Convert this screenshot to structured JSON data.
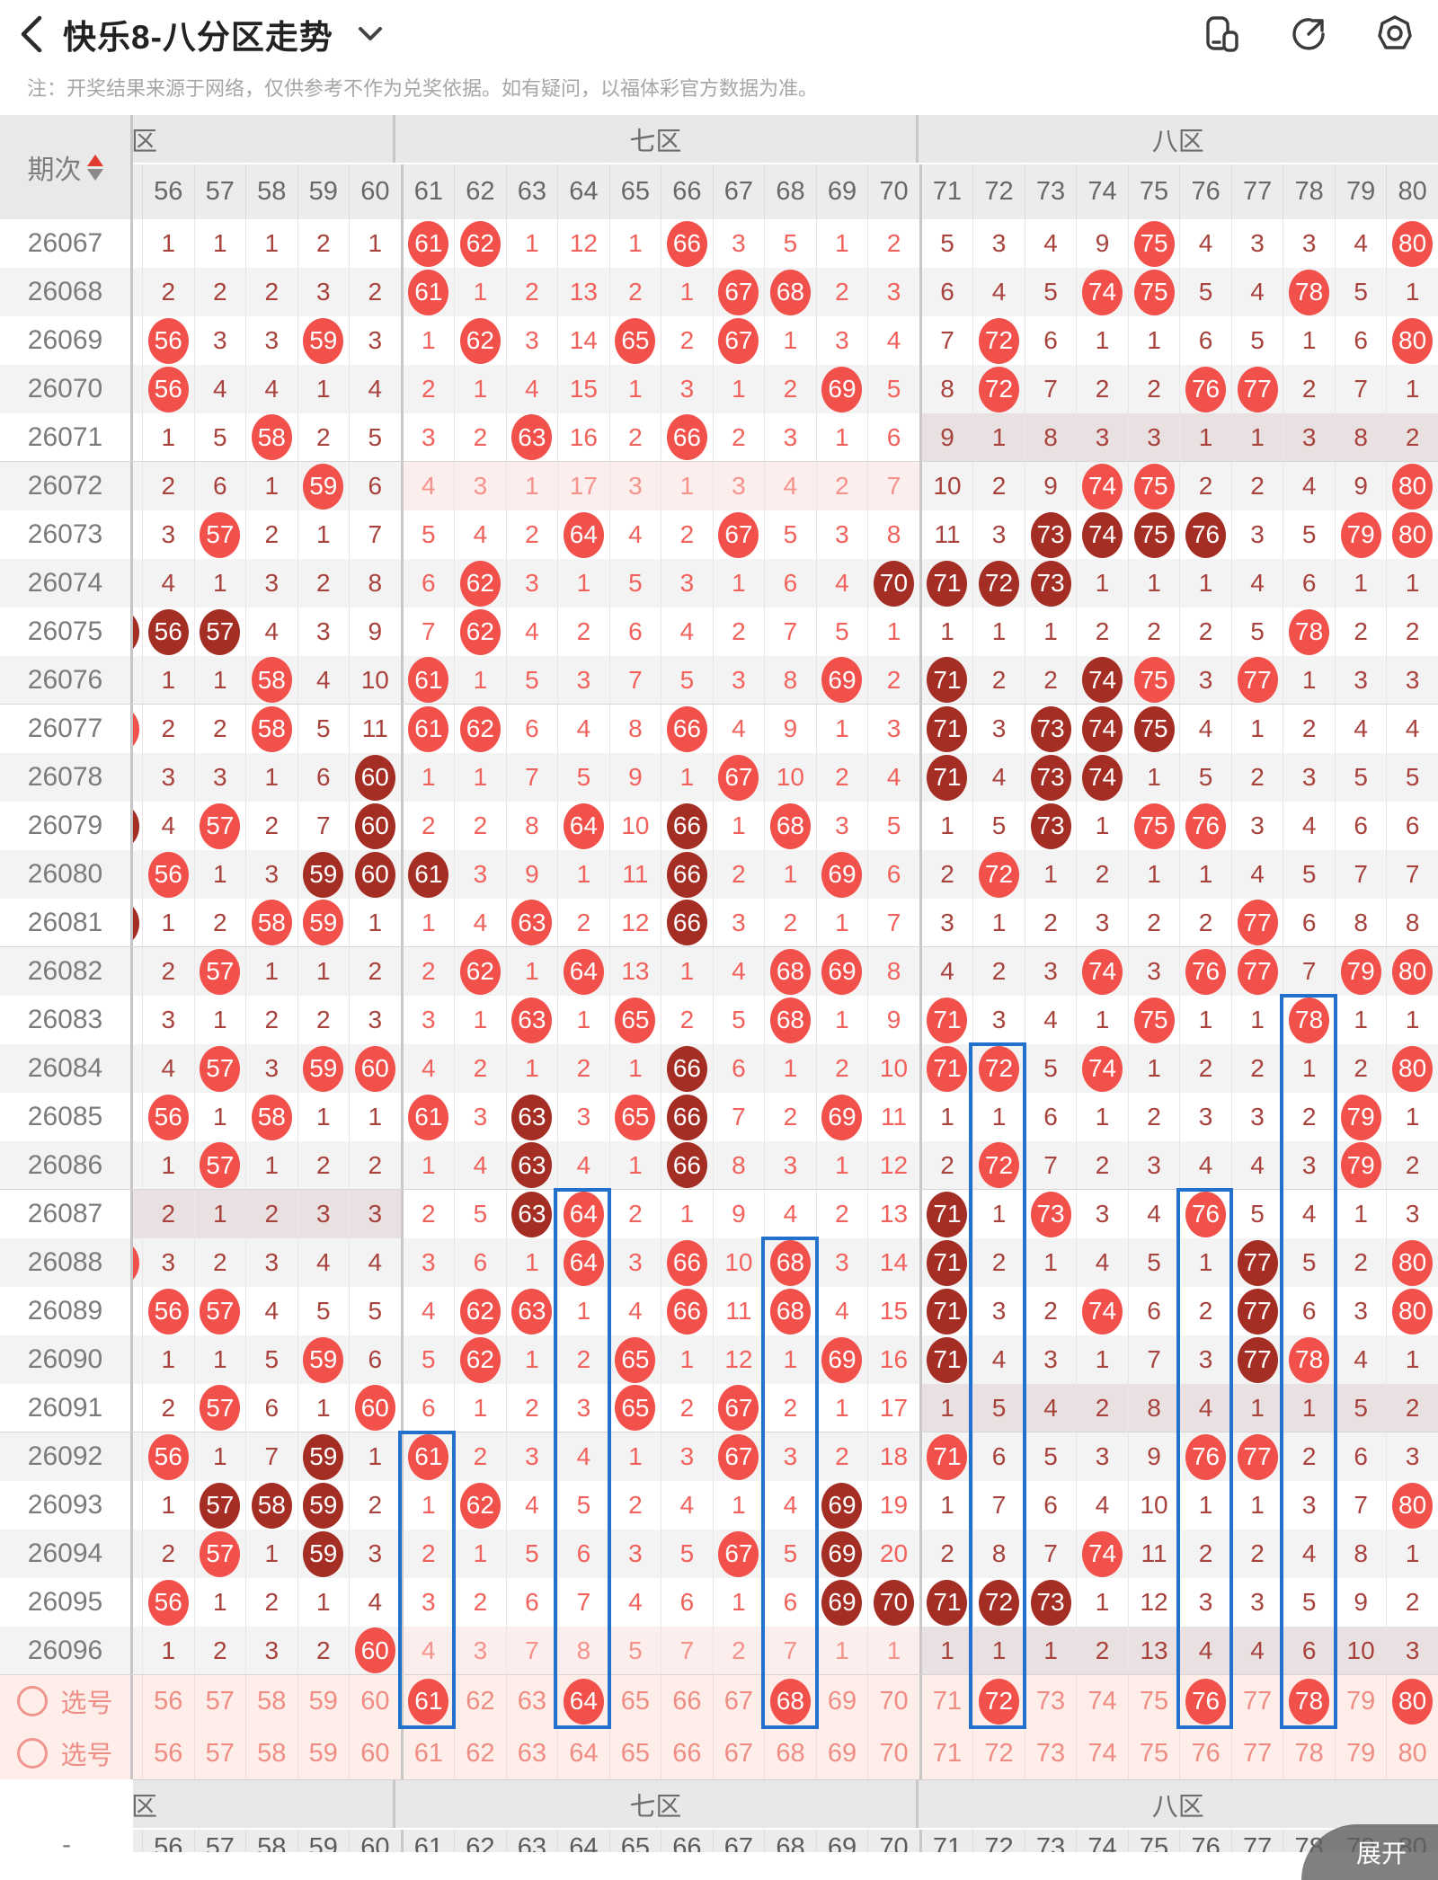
{
  "topbar": {
    "title": "快乐8-八分区走势"
  },
  "note": "注：开奖结果来源于网络，仅供参考不作为兑奖依据。如有疑问，以福体彩官方数据为准。",
  "colors": {
    "ball_red": "#f1504b",
    "ball_dark": "#a42d24",
    "miss_dark": "#a8423c",
    "miss_bright": "#f2625c",
    "highlight_pink": "#fdeeee",
    "highlight_gray": "#e9e1e1",
    "selection_bg": "#fdeee9",
    "box_blue": "#2271cc"
  },
  "table": {
    "period_header": "期次",
    "zones": [
      {
        "label": "六区",
        "cols": 5,
        "clip": true
      },
      {
        "label": "七区",
        "cols": 10
      },
      {
        "label": "八区",
        "cols": 10
      }
    ],
    "columns": [
      56,
      57,
      58,
      59,
      60,
      61,
      62,
      63,
      64,
      65,
      66,
      67,
      68,
      69,
      70,
      71,
      72,
      73,
      74,
      75,
      76,
      77,
      78,
      79,
      80
    ],
    "rows": [
      {
        "period": "26067",
        "cells": [
          1,
          1,
          1,
          2,
          1,
          "R",
          "R",
          1,
          12,
          1,
          "R",
          3,
          5,
          1,
          2,
          5,
          3,
          4,
          9,
          "R",
          4,
          3,
          3,
          4,
          "R"
        ]
      },
      {
        "period": "26068",
        "cells": [
          2,
          2,
          2,
          3,
          2,
          "R",
          1,
          2,
          13,
          2,
          1,
          "R",
          "R",
          2,
          3,
          6,
          4,
          5,
          "R",
          "R",
          5,
          4,
          "R",
          5,
          1
        ]
      },
      {
        "period": "26069",
        "cells": [
          "R",
          3,
          3,
          "R",
          3,
          1,
          "R",
          3,
          14,
          "R",
          2,
          "R",
          1,
          3,
          4,
          7,
          "R",
          6,
          1,
          1,
          6,
          5,
          1,
          6,
          "R"
        ]
      },
      {
        "period": "26070",
        "cells": [
          "R",
          4,
          4,
          1,
          4,
          2,
          1,
          4,
          15,
          1,
          3,
          1,
          2,
          "R",
          5,
          8,
          "R",
          7,
          2,
          2,
          "R",
          "R",
          2,
          7,
          1
        ]
      },
      {
        "period": "26071",
        "cells": [
          1,
          5,
          "R",
          2,
          5,
          3,
          2,
          "R",
          16,
          2,
          "R",
          2,
          3,
          1,
          6,
          9,
          1,
          8,
          3,
          3,
          1,
          1,
          3,
          8,
          2
        ],
        "hl": {
          "8": "gray"
        }
      },
      {
        "period": "26072",
        "cells": [
          2,
          6,
          1,
          "R",
          6,
          4,
          3,
          1,
          17,
          3,
          1,
          3,
          4,
          2,
          7,
          10,
          2,
          9,
          "R",
          "R",
          2,
          2,
          4,
          9,
          "R"
        ],
        "hl": {
          "7": "pink"
        }
      },
      {
        "period": "26073",
        "cells": [
          3,
          "R",
          2,
          1,
          7,
          5,
          4,
          2,
          "R",
          4,
          2,
          "R",
          5,
          3,
          8,
          11,
          3,
          "D",
          "D",
          "D",
          "D",
          3,
          5,
          "R",
          "R"
        ]
      },
      {
        "period": "26074",
        "cells": [
          4,
          1,
          3,
          2,
          8,
          6,
          "R",
          3,
          1,
          5,
          3,
          1,
          6,
          4,
          "D",
          "D",
          "D",
          "D",
          1,
          1,
          1,
          4,
          6,
          1,
          1
        ]
      },
      {
        "period": "26075",
        "cells": [
          "D",
          "D",
          4,
          3,
          9,
          7,
          "R",
          4,
          2,
          6,
          4,
          2,
          7,
          5,
          1,
          1,
          1,
          1,
          2,
          2,
          2,
          5,
          "R",
          2,
          2
        ],
        "sliver": "D"
      },
      {
        "period": "26076",
        "cells": [
          1,
          1,
          "R",
          4,
          10,
          "R",
          1,
          5,
          3,
          7,
          5,
          3,
          8,
          "R",
          2,
          "D",
          2,
          2,
          "D",
          "R",
          3,
          "R",
          1,
          3,
          3
        ]
      },
      {
        "period": "26077",
        "cells": [
          2,
          2,
          "R",
          5,
          11,
          "R",
          "R",
          6,
          4,
          8,
          "R",
          4,
          9,
          1,
          3,
          "D",
          3,
          "D",
          "D",
          "D",
          4,
          1,
          2,
          4,
          4
        ],
        "sliver": "R"
      },
      {
        "period": "26078",
        "cells": [
          3,
          3,
          1,
          6,
          "D",
          1,
          1,
          7,
          5,
          9,
          1,
          "R",
          10,
          2,
          4,
          "D",
          4,
          "D",
          "D",
          1,
          5,
          2,
          3,
          5,
          5
        ]
      },
      {
        "period": "26079",
        "cells": [
          4,
          "R",
          2,
          7,
          "D",
          2,
          2,
          8,
          "R",
          10,
          "D",
          1,
          "R",
          3,
          5,
          1,
          5,
          "D",
          1,
          "R",
          "R",
          3,
          4,
          6,
          6
        ],
        "sliver": "D"
      },
      {
        "period": "26080",
        "cells": [
          "R",
          1,
          3,
          "D",
          "D",
          "D",
          3,
          9,
          1,
          11,
          "D",
          2,
          1,
          "R",
          6,
          2,
          "R",
          1,
          2,
          1,
          1,
          4,
          5,
          7,
          7
        ]
      },
      {
        "period": "26081",
        "cells": [
          1,
          2,
          "R",
          "R",
          1,
          1,
          4,
          "R",
          2,
          12,
          "D",
          3,
          2,
          1,
          7,
          3,
          1,
          2,
          3,
          2,
          2,
          "R",
          6,
          8,
          8
        ],
        "sliver": "D"
      },
      {
        "period": "26082",
        "cells": [
          2,
          "R",
          1,
          1,
          2,
          2,
          "R",
          1,
          "R",
          13,
          1,
          4,
          "R",
          "R",
          8,
          4,
          2,
          3,
          "R",
          3,
          "R",
          "R",
          7,
          "R",
          "R"
        ]
      },
      {
        "period": "26083",
        "cells": [
          3,
          1,
          2,
          2,
          3,
          3,
          1,
          "R",
          1,
          "R",
          2,
          5,
          "R",
          1,
          9,
          "R",
          3,
          4,
          1,
          "R",
          1,
          1,
          "R",
          1,
          1
        ]
      },
      {
        "period": "26084",
        "cells": [
          4,
          "R",
          3,
          "R",
          "R",
          4,
          2,
          1,
          2,
          1,
          "D",
          6,
          1,
          2,
          10,
          "R",
          "R",
          5,
          "R",
          1,
          2,
          2,
          1,
          2,
          "R"
        ]
      },
      {
        "period": "26085",
        "cells": [
          "R",
          1,
          "R",
          1,
          1,
          "R",
          3,
          "D",
          3,
          "R",
          "D",
          7,
          2,
          "R",
          11,
          1,
          1,
          6,
          1,
          2,
          3,
          3,
          2,
          "R",
          1
        ]
      },
      {
        "period": "26086",
        "cells": [
          1,
          "R",
          1,
          2,
          2,
          1,
          4,
          "D",
          4,
          1,
          "D",
          8,
          3,
          1,
          12,
          2,
          "R",
          7,
          2,
          3,
          4,
          4,
          3,
          "R",
          2
        ]
      },
      {
        "period": "26087",
        "cells": [
          2,
          1,
          2,
          3,
          3,
          2,
          5,
          "D",
          "R",
          2,
          1,
          9,
          4,
          2,
          13,
          "D",
          1,
          "R",
          3,
          4,
          "R",
          5,
          4,
          1,
          3
        ],
        "hl": {
          "6": "gray"
        }
      },
      {
        "period": "26088",
        "cells": [
          3,
          2,
          3,
          4,
          4,
          3,
          6,
          1,
          "R",
          3,
          "R",
          10,
          "R",
          3,
          14,
          "D",
          2,
          1,
          4,
          5,
          1,
          "D",
          5,
          2,
          "R"
        ],
        "sliver": "R"
      },
      {
        "period": "26089",
        "cells": [
          "R",
          "R",
          4,
          5,
          5,
          4,
          "R",
          "R",
          1,
          4,
          "R",
          11,
          "R",
          4,
          15,
          "D",
          3,
          2,
          "R",
          6,
          2,
          "D",
          6,
          3,
          "R"
        ]
      },
      {
        "period": "26090",
        "cells": [
          1,
          1,
          5,
          "R",
          6,
          5,
          "R",
          1,
          2,
          "R",
          1,
          12,
          1,
          "R",
          16,
          "D",
          4,
          3,
          1,
          7,
          3,
          "D",
          "R",
          4,
          1
        ]
      },
      {
        "period": "26091",
        "cells": [
          2,
          "R",
          6,
          1,
          "R",
          6,
          1,
          2,
          3,
          "R",
          2,
          "R",
          2,
          1,
          17,
          1,
          5,
          4,
          2,
          8,
          4,
          1,
          1,
          5,
          2
        ],
        "hl": {
          "8": "gray"
        }
      },
      {
        "period": "26092",
        "cells": [
          "R",
          1,
          7,
          "D",
          1,
          "R",
          2,
          3,
          4,
          1,
          3,
          "R",
          3,
          2,
          18,
          "R",
          6,
          5,
          3,
          9,
          "R",
          "R",
          2,
          6,
          3
        ]
      },
      {
        "period": "26093",
        "cells": [
          1,
          "D",
          "D",
          "D",
          2,
          1,
          "R",
          4,
          5,
          2,
          4,
          1,
          4,
          "D",
          19,
          1,
          7,
          6,
          4,
          10,
          1,
          1,
          3,
          7,
          "R"
        ]
      },
      {
        "period": "26094",
        "cells": [
          2,
          "R",
          1,
          "D",
          3,
          2,
          1,
          5,
          6,
          3,
          5,
          "R",
          5,
          "D",
          20,
          2,
          8,
          7,
          "R",
          11,
          2,
          2,
          4,
          8,
          1
        ]
      },
      {
        "period": "26095",
        "cells": [
          "R",
          1,
          2,
          1,
          4,
          3,
          2,
          6,
          7,
          4,
          6,
          1,
          6,
          "D",
          "D",
          "D",
          "D",
          "D",
          1,
          12,
          3,
          3,
          5,
          9,
          2
        ]
      },
      {
        "period": "26096",
        "cells": [
          1,
          2,
          3,
          2,
          "R",
          4,
          3,
          7,
          8,
          5,
          7,
          2,
          7,
          1,
          1,
          1,
          1,
          1,
          2,
          13,
          4,
          4,
          6,
          10,
          3
        ],
        "hl": {
          "7": "pink",
          "8": "gray"
        }
      }
    ],
    "selection_rows": [
      {
        "label": "选号",
        "selected": [
          61,
          64,
          68,
          72,
          76,
          78,
          80
        ]
      },
      {
        "label": "选号",
        "selected": []
      }
    ],
    "blue_boxes": [
      {
        "col": 61,
        "from": "26092"
      },
      {
        "col": 64,
        "from": "26087"
      },
      {
        "col": 68,
        "from": "26088"
      },
      {
        "col": 72,
        "from": "26084"
      },
      {
        "col": 76,
        "from": "26087"
      },
      {
        "col": 78,
        "from": "26083"
      }
    ],
    "footer_dash": "-"
  },
  "expand_label": "展开"
}
